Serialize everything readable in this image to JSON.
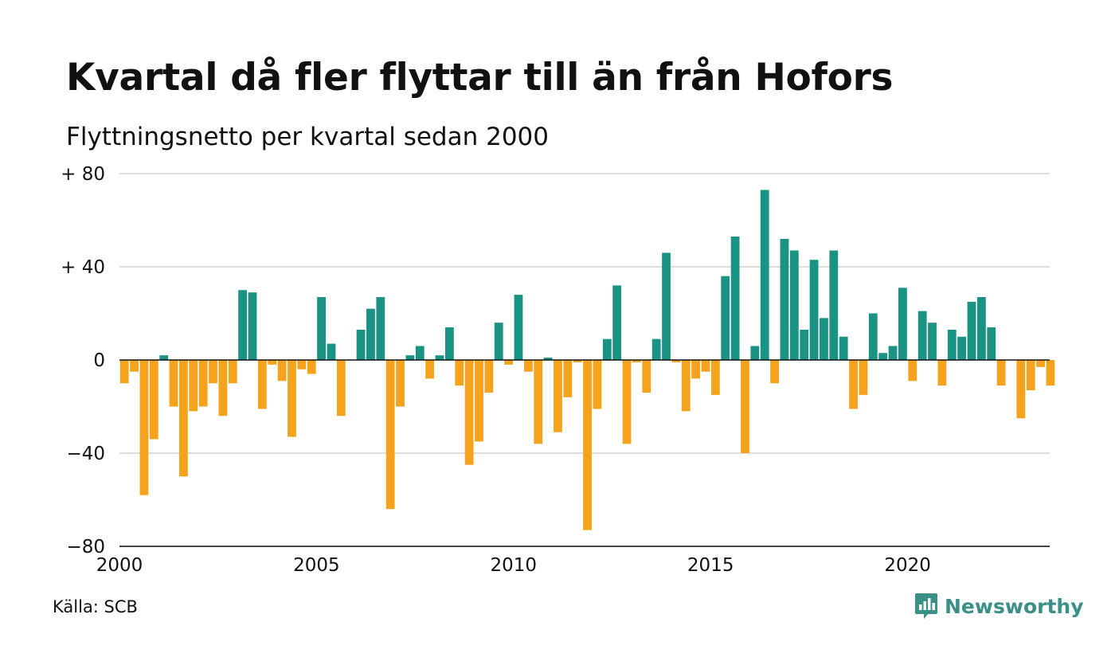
{
  "colors": {
    "positive": "#1a9384",
    "negative": "#f5a21d",
    "grid": "#dddddd",
    "zero_line": "#111111",
    "logo": "#3a8f86"
  },
  "source": "Källa: SCB",
  "logo": {
    "text": "Newsworthy",
    "icon": "chat-bubble-bar-chart-icon"
  },
  "chart_data": {
    "type": "bar",
    "title": "Kvartal då fler flyttar till än från Hofors",
    "subtitle": "Flyttningsnetto per kvartal sedan 2000",
    "xlabel": "",
    "ylabel": "",
    "ylim": [
      -80,
      80
    ],
    "y_ticks": [
      {
        "value": 80,
        "label": "+ 80"
      },
      {
        "value": 40,
        "label": "+ 40"
      },
      {
        "value": 0,
        "label": "0"
      },
      {
        "value": -40,
        "label": "−40"
      },
      {
        "value": -80,
        "label": "−80"
      }
    ],
    "x_ticks": [
      {
        "year": 2000,
        "label": "2000"
      },
      {
        "year": 2005,
        "label": "2005"
      },
      {
        "year": 2010,
        "label": "2010"
      },
      {
        "year": 2015,
        "label": "2015"
      },
      {
        "year": 2020,
        "label": "2020"
      }
    ],
    "grid": true,
    "legend": "none",
    "categories": [
      "2000 Q1",
      "2000 Q2",
      "2000 Q3",
      "2000 Q4",
      "2001 Q1",
      "2001 Q2",
      "2001 Q3",
      "2001 Q4",
      "2002 Q1",
      "2002 Q2",
      "2002 Q3",
      "2002 Q4",
      "2003 Q1",
      "2003 Q2",
      "2003 Q3",
      "2003 Q4",
      "2004 Q1",
      "2004 Q2",
      "2004 Q3",
      "2004 Q4",
      "2005 Q1",
      "2005 Q2",
      "2005 Q3",
      "2005 Q4",
      "2006 Q1",
      "2006 Q2",
      "2006 Q3",
      "2006 Q4",
      "2007 Q1",
      "2007 Q2",
      "2007 Q3",
      "2007 Q4",
      "2008 Q1",
      "2008 Q2",
      "2008 Q3",
      "2008 Q4",
      "2009 Q1",
      "2009 Q2",
      "2009 Q3",
      "2009 Q4",
      "2010 Q1",
      "2010 Q2",
      "2010 Q3",
      "2010 Q4",
      "2011 Q1",
      "2011 Q2",
      "2011 Q3",
      "2011 Q4",
      "2012 Q1",
      "2012 Q2",
      "2012 Q3",
      "2012 Q4",
      "2013 Q1",
      "2013 Q2",
      "2013 Q3",
      "2013 Q4",
      "2014 Q1",
      "2014 Q2",
      "2014 Q3",
      "2014 Q4",
      "2015 Q1",
      "2015 Q2",
      "2015 Q3",
      "2015 Q4",
      "2016 Q1",
      "2016 Q2",
      "2016 Q3",
      "2016 Q4",
      "2017 Q1",
      "2017 Q2",
      "2017 Q3",
      "2017 Q4",
      "2018 Q1",
      "2018 Q2",
      "2018 Q3",
      "2018 Q4",
      "2019 Q1",
      "2019 Q2",
      "2019 Q3",
      "2019 Q4",
      "2020 Q1",
      "2020 Q2",
      "2020 Q3",
      "2020 Q4",
      "2021 Q1",
      "2021 Q2",
      "2021 Q3",
      "2021 Q4",
      "2022 Q1",
      "2022 Q2",
      "2022 Q3",
      "2022 Q4",
      "2023 Q1",
      "2023 Q2",
      "2023 Q3",
      "2023 Q4"
    ],
    "values": [
      -10,
      -5,
      -58,
      -34,
      2,
      -20,
      -50,
      -22,
      -20,
      -10,
      -24,
      -10,
      30,
      29,
      -21,
      -2,
      -9,
      -33,
      -4,
      -6,
      27,
      7,
      -24,
      0,
      13,
      22,
      27,
      -64,
      -20,
      2,
      6,
      -8,
      2,
      14,
      -11,
      -45,
      -35,
      -14,
      16,
      -2,
      28,
      -5,
      -36,
      1,
      -31,
      -16,
      -1,
      -73,
      -21,
      9,
      32,
      -36,
      -1,
      -14,
      9,
      46,
      -1,
      -22,
      -8,
      -5,
      -15,
      36,
      53,
      -40,
      6,
      73,
      -10,
      52,
      47,
      13,
      43,
      18,
      47,
      10,
      -21,
      -15,
      20,
      3,
      6,
      31,
      -9,
      21,
      16,
      -11,
      13,
      10,
      25,
      27,
      14,
      -11,
      0,
      -25,
      -13,
      -3,
      -11,
      0
    ]
  }
}
